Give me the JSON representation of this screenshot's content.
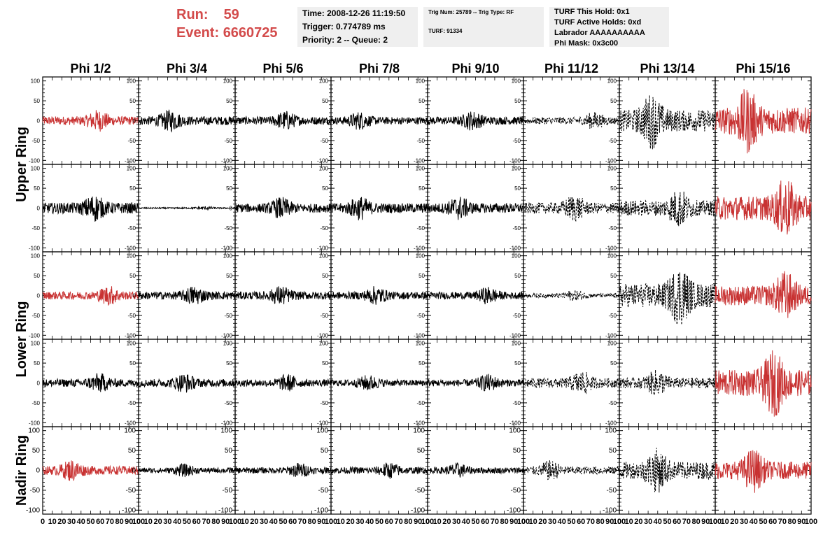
{
  "header": {
    "run_label": "Run:",
    "run_value": "59",
    "event_label": "Event:",
    "event_value": "6660725",
    "time": "Time: 2008-12-26 11:19:50",
    "trigger": "Trigger: 0.774789 ms",
    "priority": "Priority: 2 -- Queue: 2",
    "trig_num": "Trig Num: 25789 -- Trig Type: RF",
    "turf": "TURF: 91334",
    "turf_this_hold": "TURF This Hold: 0x1",
    "turf_active_holds": "TURF Active Holds: 0xd",
    "labrador": "Labrador AAAAAAAAAA",
    "phi_mask": "Phi Mask: 0x3c00"
  },
  "chart_data": {
    "type": "line",
    "columns": [
      "Phi 1/2",
      "Phi 3/4",
      "Phi 5/6",
      "Phi 7/8",
      "Phi 9/10",
      "Phi 11/12",
      "Phi 13/14",
      "Phi 15/16"
    ],
    "ring_labels": [
      "Upper Ring",
      "Lower Ring",
      "Nadir Ring"
    ],
    "rows": 5,
    "xlim": [
      0,
      100
    ],
    "ylim": [
      -110,
      110
    ],
    "yticks": [
      -100,
      -50,
      0,
      50,
      100
    ],
    "xticks": [
      0,
      10,
      20,
      30,
      40,
      50,
      60,
      70,
      80,
      90,
      100
    ],
    "bottom_tick_labels": [
      "0",
      "10",
      "20",
      "30",
      "40",
      "50",
      "60",
      "70",
      "80",
      "90",
      "100"
    ],
    "colors": {
      "red": "#c83232",
      "black": "#000000"
    },
    "amplitudes": [
      [
        20,
        20,
        18,
        17,
        18,
        16,
        50,
        60
      ],
      [
        25,
        3,
        20,
        22,
        22,
        25,
        35,
        55
      ],
      [
        18,
        18,
        18,
        17,
        16,
        10,
        55,
        45
      ],
      [
        18,
        18,
        16,
        15,
        16,
        22,
        24,
        60
      ],
      [
        20,
        12,
        14,
        15,
        14,
        18,
        40,
        40
      ]
    ],
    "styles": [
      [
        "red",
        "black",
        "black",
        "black",
        "black",
        "dashed",
        "dashed",
        "red"
      ],
      [
        "black",
        "black",
        "black",
        "black",
        "black",
        "dashed",
        "dashed",
        "red"
      ],
      [
        "red",
        "black",
        "black",
        "black",
        "black",
        "dashed",
        "dashed",
        "red"
      ],
      [
        "black",
        "black",
        "black",
        "black",
        "black",
        "dashed",
        "dashed",
        "red"
      ],
      [
        "red",
        "black",
        "black",
        "black",
        "black",
        "dashed",
        "dashed",
        "red"
      ]
    ]
  }
}
